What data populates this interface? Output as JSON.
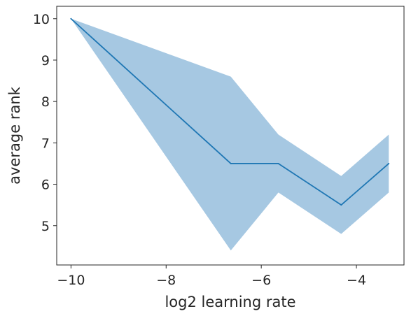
{
  "chart_data": {
    "type": "line",
    "title": "",
    "xlabel": "log2 learning rate",
    "ylabel": "average rank",
    "xlim": [
      -10.3,
      -3.0
    ],
    "ylim": [
      4.05,
      10.3
    ],
    "xticks": [
      -10,
      -8,
      -6,
      -4
    ],
    "xtick_labels": [
      "−10",
      "−8",
      "−6",
      "−4"
    ],
    "yticks": [
      5,
      6,
      7,
      8,
      9,
      10
    ],
    "ytick_labels": [
      "5",
      "6",
      "7",
      "8",
      "9",
      "10"
    ],
    "grid": false,
    "series": [
      {
        "x": [
          -10.0,
          -6.64,
          -5.64,
          -4.32,
          -3.32
        ],
        "y": [
          10.0,
          6.5,
          6.5,
          5.5,
          6.5
        ],
        "lower": [
          10.0,
          4.4,
          5.8,
          4.8,
          5.8
        ],
        "upper": [
          10.0,
          8.6,
          7.2,
          6.2,
          7.2
        ]
      }
    ],
    "colors": {
      "line": "#1f77b4",
      "band": "#a6c8e2",
      "axes": "#262626"
    }
  }
}
